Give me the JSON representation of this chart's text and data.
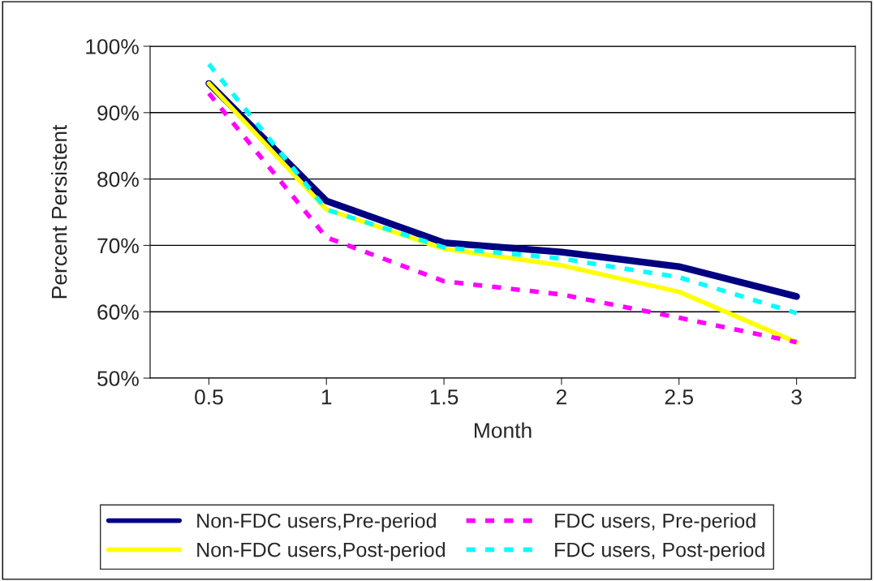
{
  "chart_data": {
    "type": "line",
    "xlabel": "Month",
    "ylabel": "Percent Persistent",
    "x": [
      0.5,
      1,
      1.5,
      2,
      2.5,
      3
    ],
    "xlim": [
      0.25,
      3.25
    ],
    "xticks": [
      0.5,
      1,
      1.5,
      2,
      2.5,
      3
    ],
    "ylim": [
      50,
      100
    ],
    "yticks": [
      {
        "value": 50,
        "label": "50%"
      },
      {
        "value": 60,
        "label": "60%"
      },
      {
        "value": 70,
        "label": "70%"
      },
      {
        "value": 80,
        "label": "80%"
      },
      {
        "value": 90,
        "label": "90%"
      },
      {
        "value": 100,
        "label": "100%"
      }
    ],
    "grid": "y",
    "legend": "bottom",
    "marker": "none",
    "series": [
      {
        "name": "Non-FDC users,Pre-period",
        "color": "#000080",
        "line_style": "solid",
        "values": [
          94.4,
          76.7,
          70.4,
          69.0,
          66.8,
          62.3
        ]
      },
      {
        "name": "Non-FDC users,Post-period",
        "color": "#ffff00",
        "line_style": "solid",
        "values": [
          94.4,
          75.4,
          69.5,
          67.0,
          63.0,
          55.4
        ]
      },
      {
        "name": "FDC users, Pre-period",
        "color": "#ff00ff",
        "line_style": "dashed",
        "values": [
          92.9,
          71.2,
          64.6,
          62.6,
          59.1,
          55.4
        ]
      },
      {
        "name": "FDC users, Post-period",
        "color": "#00ffff",
        "line_style": "dashed",
        "values": [
          97.3,
          75.4,
          69.7,
          68.0,
          65.2,
          59.8
        ]
      }
    ]
  }
}
